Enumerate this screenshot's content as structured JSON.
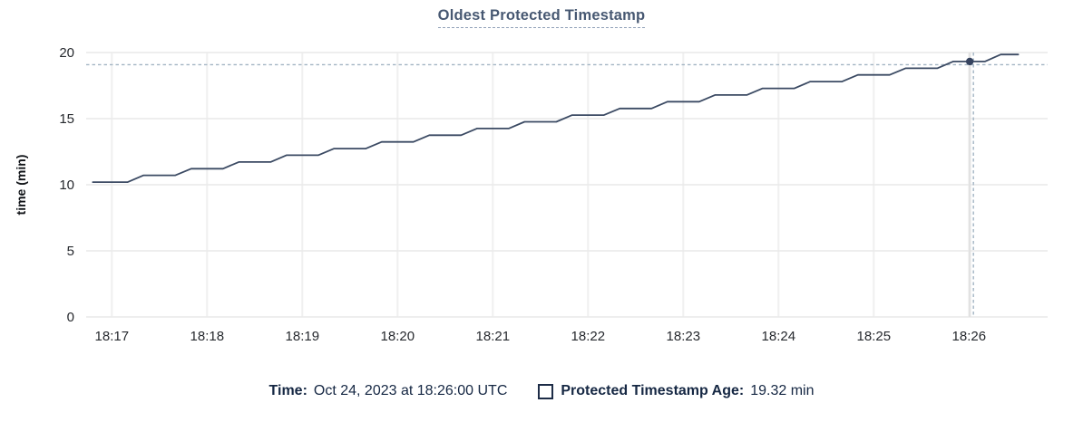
{
  "header": {
    "title": "Oldest Protected Timestamp"
  },
  "legend": {
    "time_label": "Time:",
    "time_value": "Oct 24, 2023 at 18:26:00 UTC",
    "swatch_icon": "square-outline-icon",
    "series_label": "Protected Timestamp Age:",
    "series_value": "19.32 min"
  },
  "chart_data": {
    "type": "line",
    "title": "Oldest Protected Timestamp",
    "xlabel": "",
    "ylabel": "time (min)",
    "ylim": [
      0,
      20
    ],
    "y_ticks": [
      0,
      5,
      10,
      15,
      20
    ],
    "x_tick_labels": [
      "18:17",
      "18:18",
      "18:19",
      "18:20",
      "18:21",
      "18:22",
      "18:23",
      "18:24",
      "18:25",
      "18:26"
    ],
    "x_tick_interval_seconds": 60,
    "grid": true,
    "legend_position": "bottom",
    "series": [
      {
        "name": "Protected Timestamp Age",
        "unit": "min",
        "shape": "step-ramp",
        "points_sec_vs_min": [
          [
            -12,
            10.2
          ],
          [
            10,
            10.2
          ],
          [
            20,
            10.71
          ],
          [
            40,
            10.71
          ],
          [
            50,
            11.21
          ],
          [
            70,
            11.21
          ],
          [
            80,
            11.72
          ],
          [
            100,
            11.72
          ],
          [
            110,
            12.23
          ],
          [
            130,
            12.23
          ],
          [
            140,
            12.73
          ],
          [
            160,
            12.73
          ],
          [
            170,
            13.24
          ],
          [
            190,
            13.24
          ],
          [
            200,
            13.75
          ],
          [
            220,
            13.75
          ],
          [
            230,
            14.25
          ],
          [
            250,
            14.25
          ],
          [
            260,
            14.76
          ],
          [
            280,
            14.76
          ],
          [
            290,
            15.27
          ],
          [
            310,
            15.27
          ],
          [
            320,
            15.77
          ],
          [
            340,
            15.77
          ],
          [
            350,
            16.28
          ],
          [
            370,
            16.28
          ],
          [
            380,
            16.79
          ],
          [
            400,
            16.79
          ],
          [
            410,
            17.29
          ],
          [
            430,
            17.29
          ],
          [
            440,
            17.8
          ],
          [
            460,
            17.8
          ],
          [
            470,
            18.31
          ],
          [
            490,
            18.31
          ],
          [
            500,
            18.81
          ],
          [
            520,
            18.81
          ],
          [
            530,
            19.32
          ],
          [
            550,
            19.32
          ],
          [
            560,
            19.85
          ],
          [
            571,
            19.85
          ]
        ]
      }
    ],
    "hover_point": {
      "x_label": "18:26",
      "t_sec": 540.5,
      "value_min": 19.32,
      "time_text": "Oct 24, 2023 at 18:26:00 UTC"
    },
    "colors": {
      "line": "#3b4a63",
      "marker": "#36435f",
      "crosshair": "#a2b4c3",
      "grid_horizontal": "#e9e9e9",
      "grid_vertical": "#f0f0f0",
      "focus_line": "#e2e2e2",
      "title_text": "#475872",
      "legend_text": "#152743",
      "tick_text": "#26292e"
    }
  }
}
